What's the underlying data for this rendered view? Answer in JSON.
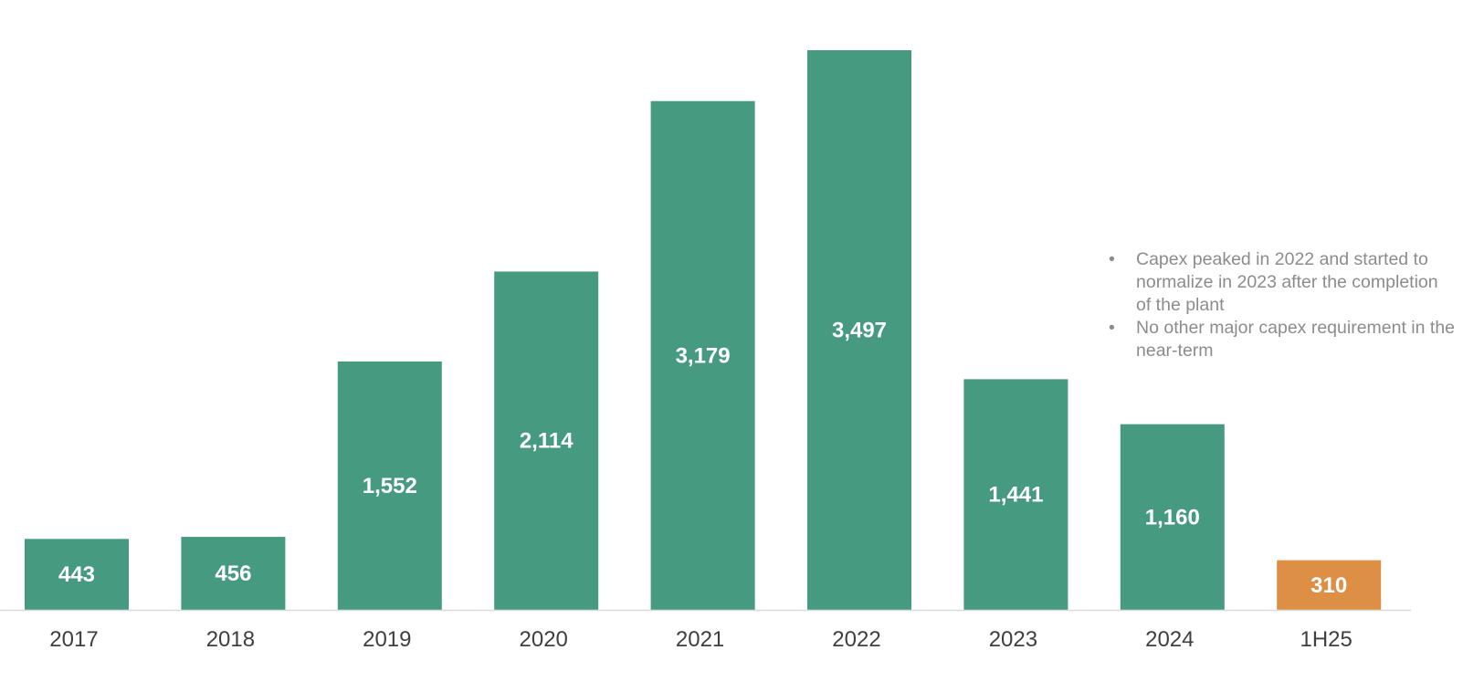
{
  "chart_data": {
    "type": "bar",
    "categories": [
      "2017",
      "2018",
      "2019",
      "2020",
      "2021",
      "2022",
      "2023",
      "2024",
      "1H25"
    ],
    "values": [
      443,
      456,
      1552,
      2114,
      3179,
      3497,
      1441,
      1160,
      310
    ],
    "data_labels": [
      "443",
      "456",
      "1,552",
      "2,114",
      "3,179",
      "3,497",
      "1,441",
      "1,160",
      "310"
    ],
    "title": "",
    "xlabel": "",
    "ylabel": "",
    "ylim": [
      0,
      3500
    ],
    "grid": false,
    "legend": "none",
    "colors": {
      "bar": "#469a80",
      "highlight_bar": "#dd8f45",
      "data_label": "#ffffff",
      "axis_line": "#d9d9d9",
      "tick_label": "#3f3f3f"
    },
    "highlight_categories": [
      "1H25"
    ]
  },
  "notes": [
    "Capex peaked in 2022 and started to normalize in 2023 after the completion of the plant",
    "No other major capex requirement in the near-term"
  ]
}
